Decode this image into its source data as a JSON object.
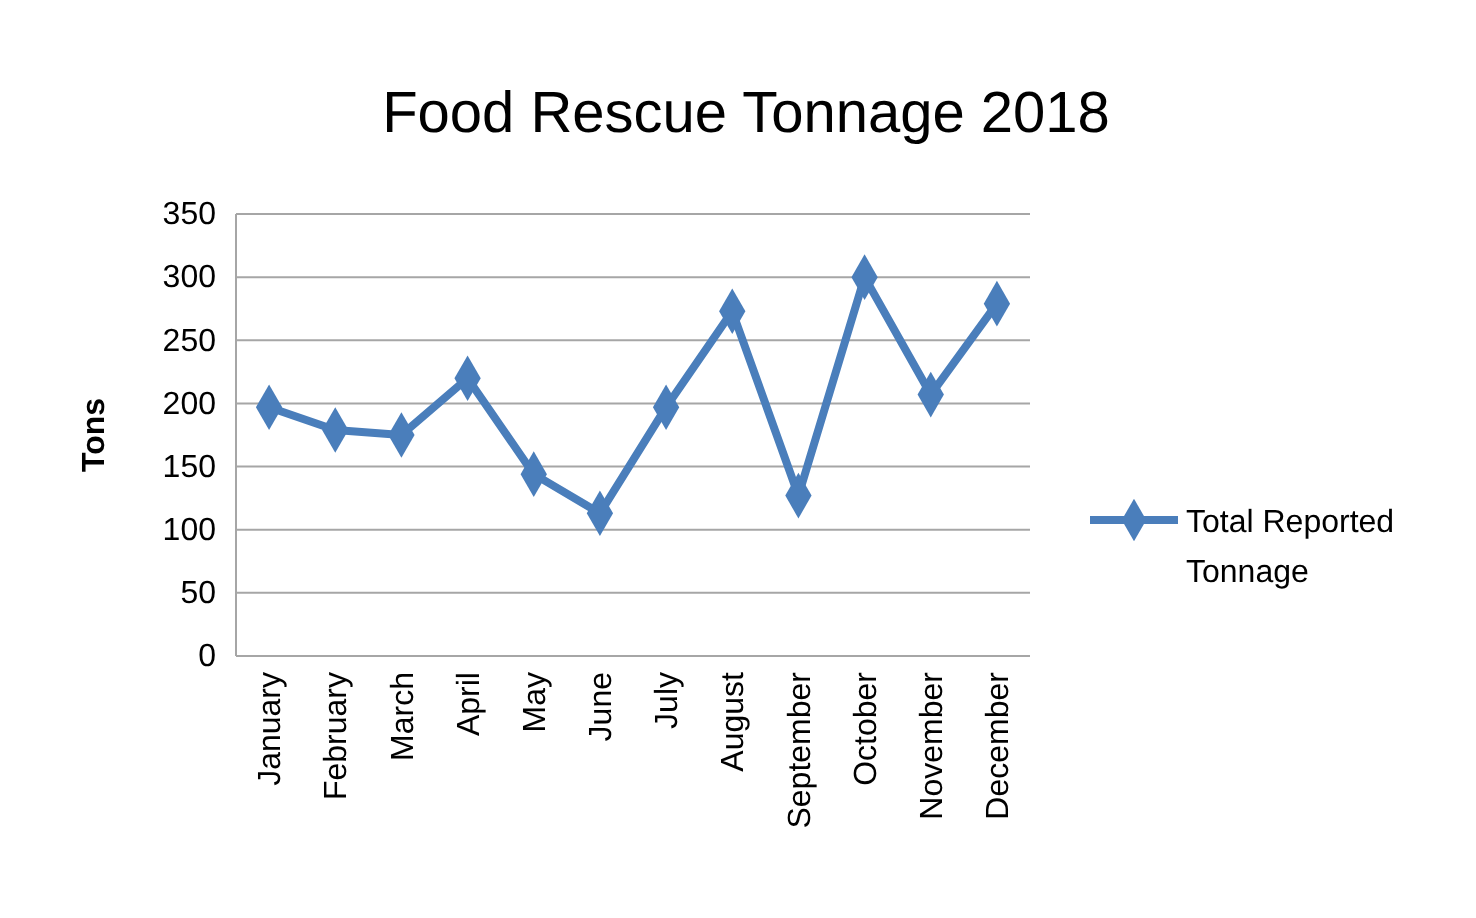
{
  "chart_data": {
    "type": "line",
    "title": "Food Rescue Tonnage 2018",
    "ylabel": "Tons",
    "categories": [
      "January",
      "February",
      "March",
      "April",
      "May",
      "June",
      "July",
      "August",
      "September",
      "October",
      "November",
      "December"
    ],
    "series": [
      {
        "name": "Total Reported Tonnage",
        "color": "#4a7ebb",
        "values": [
          197,
          179,
          175,
          220,
          144,
          113,
          197,
          273,
          127,
          300,
          207,
          279
        ]
      }
    ],
    "ylim": [
      0,
      350
    ],
    "yticks": [
      0,
      50,
      100,
      150,
      200,
      250,
      300,
      350
    ],
    "grid": "y",
    "legend": "right",
    "marker": "diamond",
    "line_style": "solid"
  }
}
